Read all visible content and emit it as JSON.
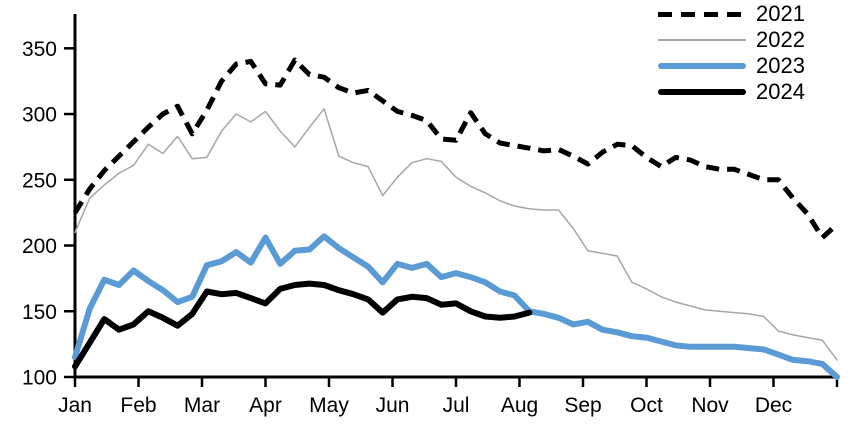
{
  "chart_data": {
    "type": "line",
    "title": "",
    "x_unit": "weekly (53 points Jan-Dec; 2024 series ends mid-August)",
    "month_tick_labels": [
      "Jan",
      "Feb",
      "Mar",
      "Apr",
      "May",
      "Jun",
      "Jul",
      "Aug",
      "Sep",
      "Oct",
      "Nov",
      "Dec"
    ],
    "y_ticks": [
      100,
      150,
      200,
      250,
      300,
      350
    ],
    "ylim": [
      100,
      360
    ],
    "grid": "off",
    "legend_position": "top-right",
    "axis_color": "#000000",
    "series": [
      {
        "name": "2021",
        "color": "#000000",
        "style": "dashed",
        "width": 5,
        "values": [
          225,
          243,
          257,
          268,
          279,
          290,
          300,
          306,
          285,
          303,
          325,
          338,
          340,
          323,
          322,
          341,
          330,
          328,
          320,
          316,
          318,
          310,
          302,
          299,
          295,
          281,
          280,
          301,
          285,
          278,
          276,
          274,
          272,
          273,
          268,
          262,
          271,
          277,
          276,
          267,
          260,
          267,
          265,
          260,
          258,
          258,
          254,
          250,
          250,
          236,
          224,
          206,
          216
        ]
      },
      {
        "name": "2022",
        "color": "#A6A6A6",
        "style": "solid",
        "width": 1.5,
        "values": [
          210,
          236,
          246,
          255,
          261,
          277,
          270,
          283,
          266,
          267,
          287,
          300,
          294,
          302,
          287,
          275,
          290,
          304,
          268,
          263,
          260,
          238,
          252,
          263,
          266,
          264,
          252,
          245,
          240,
          234,
          230,
          228,
          227,
          227,
          213,
          196,
          194,
          192,
          172,
          167,
          161,
          157,
          154,
          151,
          150,
          149,
          148,
          146,
          135,
          132,
          130,
          128,
          113
        ]
      },
      {
        "name": "2023",
        "color": "#5B9BD5",
        "style": "solid",
        "width": 6,
        "values": [
          115,
          152,
          174,
          170,
          181,
          173,
          166,
          157,
          161,
          185,
          188,
          195,
          187,
          206,
          186,
          196,
          197,
          207,
          198,
          191,
          184,
          172,
          186,
          183,
          186,
          176,
          179,
          176,
          172,
          165,
          162,
          150,
          148,
          145,
          140,
          142,
          136,
          134,
          131,
          130,
          127,
          124,
          123,
          123,
          123,
          123,
          122,
          121,
          117,
          113,
          112,
          110,
          100
        ]
      },
      {
        "name": "2024",
        "color": "#000000",
        "style": "solid",
        "width": 6,
        "values": [
          108,
          126,
          144,
          136,
          140,
          150,
          145,
          139,
          148,
          165,
          163,
          164,
          160,
          156,
          167,
          170,
          171,
          170,
          166,
          163,
          159,
          149,
          159,
          161,
          160,
          155,
          156,
          150,
          146,
          145,
          146,
          149
        ]
      }
    ]
  }
}
